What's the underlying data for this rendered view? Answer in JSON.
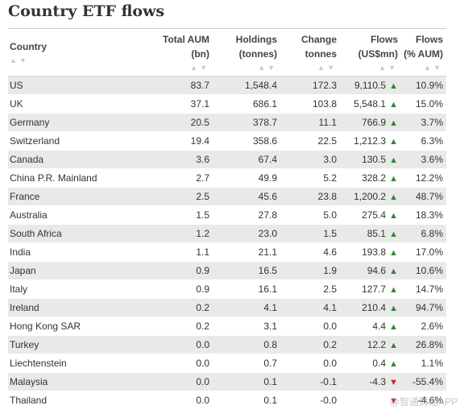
{
  "title": "Country ETF flows",
  "columns": {
    "country": "Country",
    "aum_1": "Total AUM",
    "aum_2": "(bn)",
    "hold_1": "Holdings",
    "hold_2": "(tonnes)",
    "chg_1": "Change",
    "chg_2": "tonnes",
    "flows_1": "Flows",
    "flows_2": "(US$mn)",
    "pct_1": "Flows",
    "pct_2": "(% AUM)"
  },
  "sort_glyph": "▲▼",
  "rows": [
    {
      "country": "US",
      "aum": "83.7",
      "holdings": "1,548.4",
      "change": "172.3",
      "flows": "9,110.5",
      "dir": "up",
      "pct": "10.9%"
    },
    {
      "country": "UK",
      "aum": "37.1",
      "holdings": "686.1",
      "change": "103.8",
      "flows": "5,548.1",
      "dir": "up",
      "pct": "15.0%"
    },
    {
      "country": "Germany",
      "aum": "20.5",
      "holdings": "378.7",
      "change": "11.1",
      "flows": "766.9",
      "dir": "up",
      "pct": "3.7%"
    },
    {
      "country": "Switzerland",
      "aum": "19.4",
      "holdings": "358.6",
      "change": "22.5",
      "flows": "1,212.3",
      "dir": "up",
      "pct": "6.3%"
    },
    {
      "country": "Canada",
      "aum": "3.6",
      "holdings": "67.4",
      "change": "3.0",
      "flows": "130.5",
      "dir": "up",
      "pct": "3.6%"
    },
    {
      "country": "China P.R. Mainland",
      "aum": "2.7",
      "holdings": "49.9",
      "change": "5.2",
      "flows": "328.2",
      "dir": "up",
      "pct": "12.2%"
    },
    {
      "country": "France",
      "aum": "2.5",
      "holdings": "45.6",
      "change": "23.8",
      "flows": "1,200.2",
      "dir": "up",
      "pct": "48.7%"
    },
    {
      "country": "Australia",
      "aum": "1.5",
      "holdings": "27.8",
      "change": "5.0",
      "flows": "275.4",
      "dir": "up",
      "pct": "18.3%"
    },
    {
      "country": "South Africa",
      "aum": "1.2",
      "holdings": "23.0",
      "change": "1.5",
      "flows": "85.1",
      "dir": "up",
      "pct": "6.8%"
    },
    {
      "country": "India",
      "aum": "1.1",
      "holdings": "21.1",
      "change": "4.6",
      "flows": "193.8",
      "dir": "up",
      "pct": "17.0%"
    },
    {
      "country": "Japan",
      "aum": "0.9",
      "holdings": "16.5",
      "change": "1.9",
      "flows": "94.6",
      "dir": "up",
      "pct": "10.6%"
    },
    {
      "country": "Italy",
      "aum": "0.9",
      "holdings": "16.1",
      "change": "2.5",
      "flows": "127.7",
      "dir": "up",
      "pct": "14.7%"
    },
    {
      "country": "Ireland",
      "aum": "0.2",
      "holdings": "4.1",
      "change": "4.1",
      "flows": "210.4",
      "dir": "up",
      "pct": "94.7%"
    },
    {
      "country": "Hong Kong SAR",
      "aum": "0.2",
      "holdings": "3.1",
      "change": "0.0",
      "flows": "4.4",
      "dir": "up",
      "pct": "2.6%"
    },
    {
      "country": "Turkey",
      "aum": "0.0",
      "holdings": "0.8",
      "change": "0.2",
      "flows": "12.2",
      "dir": "up",
      "pct": "26.8%"
    },
    {
      "country": "Liechtenstein",
      "aum": "0.0",
      "holdings": "0.7",
      "change": "0.0",
      "flows": "0.4",
      "dir": "up",
      "pct": "1.1%"
    },
    {
      "country": "Malaysia",
      "aum": "0.0",
      "holdings": "0.1",
      "change": "-0.1",
      "flows": "-4.3",
      "dir": "down",
      "pct": "-55.4%"
    },
    {
      "country": "Thailand",
      "aum": "0.0",
      "holdings": "0.1",
      "change": "-0.0",
      "flows": "",
      "dir": "down",
      "pct": "-4.6%"
    }
  ],
  "colors": {
    "up": "#2e8b2e",
    "down": "#d42020",
    "stripe": "#e9e9e9"
  },
  "watermark": "@智通财经APP"
}
